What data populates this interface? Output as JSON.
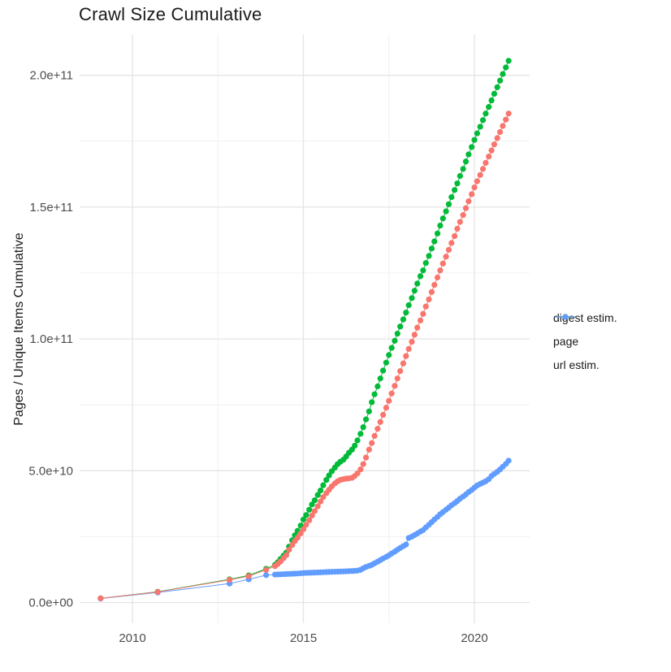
{
  "title": "Crawl Size Cumulative",
  "y_axis": {
    "label": "Pages / Unique Items Cumulative",
    "tick_labels": [
      "0.0e+00",
      "5.0e+10",
      "1.0e+11",
      "1.5e+11",
      "2.0e+11"
    ],
    "tick_values_e9": [
      0,
      50,
      100,
      150,
      200
    ],
    "minor_values_e9": [
      25,
      75,
      125,
      175
    ]
  },
  "x_axis": {
    "tick_labels": [
      "2010",
      "2015",
      "2020"
    ],
    "tick_values": [
      2010,
      2015,
      2020
    ],
    "minor_values": [
      2012.5,
      2017.5
    ]
  },
  "legend": {
    "items": [
      {
        "label": "digest estim.",
        "color": "#F8766D"
      },
      {
        "label": "page",
        "color": "#00BA38"
      },
      {
        "label": "url estim.",
        "color": "#619CFF"
      }
    ]
  },
  "colors": {
    "digest": "#F8766D",
    "page": "#00BA38",
    "url": "#619CFF",
    "grid_major": "#E4E4E4",
    "grid_minor": "#F0F0F0",
    "tick_text": "#4d4d4d"
  },
  "chart_data": {
    "type": "scatter",
    "title": "Crawl Size Cumulative",
    "xlabel": "",
    "ylabel": "Pages / Unique Items Cumulative",
    "unit": "items, values in units of 1e9",
    "xlim": [
      2008.5,
      2021.6
    ],
    "ylim_e9": [
      -8,
      216
    ],
    "grid": true,
    "legend_position": "right",
    "x_years": [
      2009.07,
      2010.74,
      2012.84,
      2013.4,
      2013.91,
      2014.17,
      2014.25,
      2014.33,
      2014.42,
      2014.5,
      2014.58,
      2014.67,
      2014.75,
      2014.83,
      2014.92,
      2015.0,
      2015.08,
      2015.17,
      2015.25,
      2015.33,
      2015.42,
      2015.5,
      2015.58,
      2015.67,
      2015.75,
      2015.83,
      2015.92,
      2016.0,
      2016.08,
      2016.17,
      2016.25,
      2016.33,
      2016.42,
      2016.5,
      2016.58,
      2016.67,
      2016.75,
      2016.83,
      2016.92,
      2017.0,
      2017.08,
      2017.17,
      2017.25,
      2017.33,
      2017.42,
      2017.5,
      2017.58,
      2017.67,
      2017.75,
      2017.83,
      2017.92,
      2018.0,
      2018.08,
      2018.17,
      2018.25,
      2018.33,
      2018.42,
      2018.5,
      2018.58,
      2018.67,
      2018.75,
      2018.83,
      2018.92,
      2019.0,
      2019.08,
      2019.17,
      2019.25,
      2019.33,
      2019.42,
      2019.5,
      2019.58,
      2019.67,
      2019.75,
      2019.83,
      2019.92,
      2020.0,
      2020.08,
      2020.17,
      2020.25,
      2020.33,
      2020.42,
      2020.5,
      2020.58,
      2020.67,
      2020.75,
      2020.83,
      2020.92,
      2021.0
    ],
    "series": [
      {
        "name": "digest estim.",
        "color": "#F8766D",
        "values_e9": [
          1.6,
          4.0,
          8.6,
          10.0,
          12.4,
          13.8,
          14.6,
          15.6,
          16.8,
          18.0,
          20.0,
          21.8,
          23.3,
          24.6,
          26.2,
          27.8,
          29.5,
          31.2,
          33.0,
          34.7,
          36.5,
          38.3,
          40.0,
          41.5,
          42.8,
          44.1,
          45.2,
          46.0,
          46.5,
          46.8,
          47.0,
          47.1,
          47.3,
          48.0,
          49.0,
          50.5,
          52.5,
          55.0,
          58.0,
          60.5,
          63.2,
          65.9,
          68.5,
          71.2,
          73.9,
          76.5,
          79.3,
          82.2,
          85.0,
          87.8,
          90.7,
          93.5,
          96.2,
          98.9,
          101.6,
          104.3,
          107.0,
          109.5,
          112.3,
          115.0,
          117.8,
          120.5,
          123.3,
          126.0,
          128.6,
          131.2,
          133.8,
          136.4,
          139.0,
          141.8,
          144.4,
          147.0,
          149.6,
          152.2,
          154.9,
          157.5,
          159.8,
          162.2,
          164.5,
          166.8,
          169.2,
          171.5,
          173.8,
          176.2,
          178.5,
          180.8,
          183.2,
          185.5
        ]
      },
      {
        "name": "page",
        "color": "#00BA38",
        "values_e9": [
          1.6,
          4.1,
          8.8,
          10.3,
          12.8,
          14.3,
          15.3,
          16.5,
          17.8,
          19.0,
          21.2,
          23.6,
          25.5,
          27.2,
          29.2,
          31.5,
          33.2,
          35.2,
          37.2,
          38.8,
          40.8,
          42.5,
          44.5,
          46.5,
          48.2,
          49.8,
          51.2,
          52.5,
          53.4,
          54.2,
          55.4,
          56.8,
          58.0,
          59.5,
          61.5,
          64.0,
          66.5,
          69.5,
          72.5,
          76.0,
          79.0,
          82.0,
          85.0,
          88.0,
          91.0,
          93.9,
          96.6,
          99.3,
          102.0,
          104.7,
          107.4,
          110.0,
          112.8,
          115.5,
          118.3,
          121.0,
          123.8,
          126.0,
          128.8,
          131.5,
          134.3,
          137.0,
          140.0,
          143.0,
          145.7,
          148.4,
          151.1,
          153.8,
          156.5,
          159.0,
          161.8,
          164.5,
          167.3,
          170.0,
          172.8,
          175.5,
          178.0,
          180.5,
          183.0,
          185.5,
          188.0,
          190.5,
          193.0,
          195.5,
          198.0,
          200.5,
          203.0,
          205.5
        ]
      },
      {
        "name": "url estim.",
        "color": "#619CFF",
        "values_e9": [
          1.5,
          3.8,
          7.2,
          8.8,
          10.4,
          10.6,
          10.65,
          10.7,
          10.75,
          10.8,
          10.85,
          10.9,
          10.95,
          11.0,
          11.1,
          11.2,
          11.24,
          11.28,
          11.32,
          11.36,
          11.4,
          11.45,
          11.5,
          11.55,
          11.6,
          11.64,
          11.68,
          11.72,
          11.76,
          11.8,
          11.85,
          11.9,
          11.95,
          12.0,
          12.1,
          12.4,
          13.0,
          13.5,
          13.9,
          14.3,
          14.9,
          15.5,
          16.1,
          16.7,
          17.3,
          17.9,
          18.6,
          19.3,
          20.0,
          20.7,
          21.4,
          22.0,
          24.5,
          25.0,
          25.6,
          26.2,
          26.9,
          27.5,
          28.5,
          29.5,
          30.5,
          31.5,
          32.5,
          33.5,
          34.3,
          35.2,
          36.0,
          36.9,
          37.7,
          38.5,
          39.4,
          40.2,
          41.0,
          41.9,
          42.7,
          43.6,
          44.4,
          45.0,
          45.5,
          46.0,
          46.8,
          48.0,
          48.8,
          49.6,
          50.5,
          51.5,
          52.6,
          53.8
        ]
      }
    ]
  }
}
